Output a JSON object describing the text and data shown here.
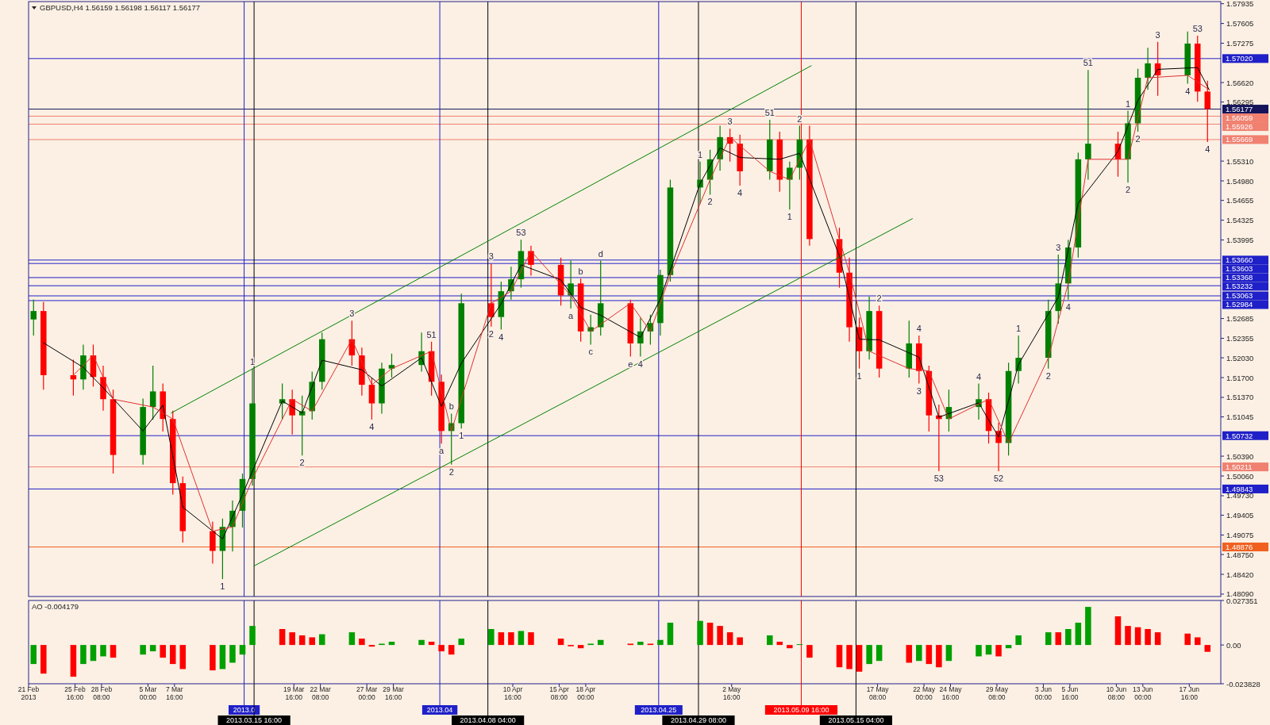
{
  "chart_data": [
    {
      "type": "candlestick",
      "title": "GBPUSD,H4  1.56159 1.56198 1.56117 1.56177",
      "x": [
        "2013-02-21T12:00",
        "2013-02-22T12:00",
        "2013-02-25T12:00",
        "2013-02-26T12:00",
        "2013-02-27T12:00",
        "2013-02-28T12:00",
        "2013-03-01T12:00",
        "2013-03-04T12:00",
        "2013-03-05T12:00",
        "2013-03-06T12:00",
        "2013-03-07T12:00",
        "2013-03-08T12:00",
        "2013-03-11T12:00",
        "2013-03-12T12:00",
        "2013-03-13T12:00",
        "2013-03-14T12:00",
        "2013-03-15T12:00",
        "2013-03-18T12:00",
        "2013-03-19T12:00",
        "2013-03-20T12:00",
        "2013-03-21T12:00",
        "2013-03-22T12:00",
        "2013-03-25T12:00",
        "2013-03-26T12:00",
        "2013-03-27T12:00",
        "2013-03-28T12:00",
        "2013-03-29T12:00",
        "2013-04-01T12:00",
        "2013-04-02T12:00",
        "2013-04-03T12:00",
        "2013-04-04T12:00",
        "2013-04-05T12:00",
        "2013-04-08T12:00",
        "2013-04-09T12:00",
        "2013-04-10T12:00",
        "2013-04-11T12:00",
        "2013-04-12T12:00",
        "2013-04-15T12:00",
        "2013-04-16T12:00",
        "2013-04-17T12:00",
        "2013-04-18T12:00",
        "2013-04-19T12:00",
        "2013-04-22T12:00",
        "2013-04-23T12:00",
        "2013-04-24T12:00",
        "2013-04-25T12:00",
        "2013-04-26T12:00",
        "2013-04-29T12:00",
        "2013-04-30T12:00",
        "2013-05-01T12:00",
        "2013-05-02T12:00",
        "2013-05-03T12:00",
        "2013-05-06T12:00",
        "2013-05-07T12:00",
        "2013-05-08T12:00",
        "2013-05-09T12:00",
        "2013-05-10T12:00",
        "2013-05-13T12:00",
        "2013-05-14T12:00",
        "2013-05-15T12:00",
        "2013-05-16T12:00",
        "2013-05-17T12:00",
        "2013-05-20T12:00",
        "2013-05-21T12:00",
        "2013-05-22T12:00",
        "2013-05-23T12:00",
        "2013-05-24T12:00",
        "2013-05-27T12:00",
        "2013-05-28T12:00",
        "2013-05-29T12:00",
        "2013-05-30T12:00",
        "2013-05-31T12:00",
        "2013-06-03T12:00",
        "2013-06-04T12:00",
        "2013-06-05T12:00",
        "2013-06-06T12:00",
        "2013-06-07T12:00",
        "2013-06-10T12:00",
        "2013-06-11T12:00",
        "2013-06-12T12:00",
        "2013-06-13T12:00",
        "2013-06-14T12:00",
        "2013-06-17T12:00",
        "2013-06-18T12:00",
        "2013-06-19T12:00"
      ],
      "ohlc": [
        [
          1.5267,
          1.53,
          1.524,
          1.5281
        ],
        [
          1.5281,
          1.5296,
          1.515,
          1.5174
        ],
        [
          1.5174,
          1.52,
          1.514,
          1.5167
        ],
        [
          1.5167,
          1.5225,
          1.515,
          1.5207
        ],
        [
          1.5207,
          1.5225,
          1.5155,
          1.5171
        ],
        [
          1.5171,
          1.519,
          1.5115,
          1.5134
        ],
        [
          1.5134,
          1.515,
          1.501,
          1.5041
        ],
        [
          1.5041,
          1.5135,
          1.5025,
          1.5121
        ],
        [
          1.5121,
          1.519,
          1.51,
          1.5147
        ],
        [
          1.5147,
          1.516,
          1.508,
          1.5101
        ],
        [
          1.5101,
          1.5115,
          1.4975,
          1.4994
        ],
        [
          1.4994,
          1.5005,
          1.4895,
          1.4914
        ],
        [
          1.4914,
          1.493,
          1.486,
          1.4881
        ],
        [
          1.4881,
          1.4935,
          1.4834,
          1.4921
        ],
        [
          1.4921,
          1.4965,
          1.488,
          1.4948
        ],
        [
          1.4948,
          1.501,
          1.492,
          1.5001
        ],
        [
          1.5001,
          1.5185,
          1.499,
          1.5127
        ],
        [
          1.5127,
          1.516,
          1.51,
          1.5134
        ],
        [
          1.5134,
          1.515,
          1.5075,
          1.5107
        ],
        [
          1.5107,
          1.514,
          1.504,
          1.5114
        ],
        [
          1.5114,
          1.518,
          1.51,
          1.5163
        ],
        [
          1.5163,
          1.5245,
          1.515,
          1.5234
        ],
        [
          1.5234,
          1.5265,
          1.519,
          1.5207
        ],
        [
          1.5207,
          1.522,
          1.514,
          1.5158
        ],
        [
          1.5158,
          1.517,
          1.51,
          1.5127
        ],
        [
          1.5127,
          1.5195,
          1.511,
          1.5185
        ],
        [
          1.5185,
          1.521,
          1.517,
          1.5191
        ],
        [
          1.5191,
          1.5245,
          1.518,
          1.5214
        ],
        [
          1.5214,
          1.523,
          1.514,
          1.5163
        ],
        [
          1.5163,
          1.5175,
          1.506,
          1.5081
        ],
        [
          1.5081,
          1.511,
          1.5025,
          1.5094
        ],
        [
          1.5094,
          1.531,
          1.5085,
          1.5294
        ],
        [
          1.5294,
          1.536,
          1.5255,
          1.5271
        ],
        [
          1.5271,
          1.533,
          1.525,
          1.5314
        ],
        [
          1.5314,
          1.5355,
          1.53,
          1.5334
        ],
        [
          1.5334,
          1.54,
          1.532,
          1.5381
        ],
        [
          1.5381,
          1.539,
          1.534,
          1.5358
        ],
        [
          1.5358,
          1.537,
          1.529,
          1.5307
        ],
        [
          1.5307,
          1.5365,
          1.5285,
          1.5327
        ],
        [
          1.5327,
          1.5335,
          1.523,
          1.5247
        ],
        [
          1.5247,
          1.5275,
          1.5225,
          1.5254
        ],
        [
          1.5254,
          1.5365,
          1.524,
          1.5294
        ],
        [
          1.5294,
          1.53,
          1.5205,
          1.5227
        ],
        [
          1.5227,
          1.527,
          1.5205,
          1.5247
        ],
        [
          1.5247,
          1.5275,
          1.5225,
          1.5261
        ],
        [
          1.5261,
          1.535,
          1.524,
          1.5341
        ],
        [
          1.5341,
          1.55,
          1.533,
          1.5487
        ],
        [
          1.5487,
          1.553,
          1.546,
          1.55
        ],
        [
          1.55,
          1.555,
          1.5475,
          1.5534
        ],
        [
          1.5534,
          1.559,
          1.5515,
          1.5571
        ],
        [
          1.5571,
          1.5585,
          1.553,
          1.556
        ],
        [
          1.556,
          1.5575,
          1.549,
          1.5514
        ],
        [
          1.5514,
          1.56,
          1.55,
          1.5567
        ],
        [
          1.5567,
          1.558,
          1.548,
          1.55
        ],
        [
          1.55,
          1.553,
          1.545,
          1.552
        ],
        [
          1.552,
          1.559,
          1.55,
          1.5567
        ],
        [
          1.5567,
          1.559,
          1.539,
          1.5401
        ],
        [
          1.5401,
          1.542,
          1.532,
          1.5345
        ],
        [
          1.5345,
          1.537,
          1.523,
          1.5254
        ],
        [
          1.5254,
          1.527,
          1.5185,
          1.5214
        ],
        [
          1.5214,
          1.5305,
          1.52,
          1.5281
        ],
        [
          1.5281,
          1.529,
          1.517,
          1.5185
        ],
        [
          1.5185,
          1.5265,
          1.517,
          1.5227
        ],
        [
          1.5227,
          1.524,
          1.516,
          1.5181
        ],
        [
          1.5181,
          1.519,
          1.508,
          1.5107
        ],
        [
          1.5107,
          1.5125,
          1.5014,
          1.5101
        ],
        [
          1.5101,
          1.515,
          1.508,
          1.5121
        ],
        [
          1.5121,
          1.516,
          1.51,
          1.5134
        ],
        [
          1.5134,
          1.5145,
          1.506,
          1.5081
        ],
        [
          1.5081,
          1.5095,
          1.5014,
          1.5061
        ],
        [
          1.5061,
          1.5195,
          1.504,
          1.5181
        ],
        [
          1.5181,
          1.524,
          1.516,
          1.5203
        ],
        [
          1.5203,
          1.53,
          1.5185,
          1.5281
        ],
        [
          1.5281,
          1.5375,
          1.526,
          1.5327
        ],
        [
          1.5327,
          1.54,
          1.53,
          1.5387
        ],
        [
          1.5387,
          1.5545,
          1.537,
          1.5534
        ],
        [
          1.5534,
          1.5683,
          1.55,
          1.556
        ],
        [
          1.556,
          1.558,
          1.5505,
          1.5534
        ],
        [
          1.5534,
          1.5615,
          1.5495,
          1.5594
        ],
        [
          1.5594,
          1.5685,
          1.558,
          1.567
        ],
        [
          1.567,
          1.572,
          1.565,
          1.5694
        ],
        [
          1.5694,
          1.573,
          1.564,
          1.5674
        ],
        [
          1.5674,
          1.5747,
          1.566,
          1.5727
        ],
        [
          1.5727,
          1.574,
          1.563,
          1.5647
        ],
        [
          1.5647,
          1.5665,
          1.5563,
          1.5618
        ]
      ],
      "colors": [
        "#008000",
        "#ff0000",
        "#ff0000",
        "#008000",
        "#ff0000",
        "#ff0000",
        "#ff0000",
        "#008000",
        "#008000",
        "#ff0000",
        "#ff0000",
        "#ff0000",
        "#ff0000",
        "#008000",
        "#008000",
        "#008000",
        "#008000",
        "#008000",
        "#ff0000",
        "#008000",
        "#008000",
        "#008000",
        "#ff0000",
        "#ff0000",
        "#ff0000",
        "#008000",
        "#008000",
        "#008000",
        "#ff0000",
        "#ff0000",
        "#008000",
        "#008000",
        "#ff0000",
        "#008000",
        "#008000",
        "#008000",
        "#ff0000",
        "#ff0000",
        "#008000",
        "#ff0000",
        "#008000",
        "#008000",
        "#ff0000",
        "#008000",
        "#008000",
        "#008000",
        "#008000",
        "#008000",
        "#008000",
        "#008000",
        "#ff0000",
        "#ff0000",
        "#008000",
        "#ff0000",
        "#008000",
        "#008000",
        "#ff0000",
        "#ff0000",
        "#ff0000",
        "#ff0000",
        "#008000",
        "#ff0000",
        "#008000",
        "#ff0000",
        "#ff0000",
        "#ff0000",
        "#008000",
        "#008000",
        "#ff0000",
        "#ff0000",
        "#008000",
        "#008000",
        "#008000",
        "#008000",
        "#008000",
        "#008000",
        "#008000",
        "#ff0000",
        "#008000",
        "#008000",
        "#008000",
        "#ff0000",
        "#008000",
        "#ff0000",
        "#ff0000"
      ],
      "series": [
        {
          "type": "line",
          "color": "#000000",
          "x": [
            "2013-02-22T12:00",
            "2013-02-26T12:00",
            "2013-02-28T12:00",
            "2013-03-04T12:00",
            "2013-03-06T12:00",
            "2013-03-08T12:00",
            "2013-03-12T12:00",
            "2013-03-14T12:00",
            "2013-03-18T12:00",
            "2013-03-20T12:00",
            "2013-03-22T12:00",
            "2013-03-26T12:00",
            "2013-03-28T12:00",
            "2013-04-01T12:00",
            "2013-04-03T12:00",
            "2013-04-05T12:00",
            "2013-04-09T12:00",
            "2013-04-11T12:00",
            "2013-04-15T12:00",
            "2013-04-17T12:00",
            "2013-04-19T12:00",
            "2013-04-23T12:00",
            "2013-04-25T12:00",
            "2013-04-29T12:00",
            "2013-05-01T12:00",
            "2013-05-03T12:00",
            "2013-05-07T12:00",
            "2013-05-09T12:00",
            "2013-05-13T12:00",
            "2013-05-15T12:00",
            "2013-05-17T12:00",
            "2013-05-21T12:00",
            "2013-05-23T12:00",
            "2013-05-27T12:00",
            "2013-05-29T12:00",
            "2013-05-31T12:00",
            "2013-06-04T12:00",
            "2013-06-06T12:00",
            "2013-06-10T12:00",
            "2013-06-12T12:00",
            "2013-06-14T12:00",
            "2013-06-18T12:00",
            "2013-06-19T16:00"
          ],
          "values": [
            1.5228,
            1.5187,
            1.5153,
            1.5081,
            1.5124,
            1.4954,
            1.4901,
            1.4975,
            1.5131,
            1.5111,
            1.5199,
            1.5183,
            1.5156,
            1.5203,
            1.5122,
            1.5194,
            1.5293,
            1.5358,
            1.5333,
            1.5287,
            1.5274,
            1.5237,
            1.5301,
            1.5494,
            1.5553,
            1.5537,
            1.5534,
            1.5544,
            1.5373,
            1.5234,
            1.5233,
            1.5204,
            1.5104,
            1.5128,
            1.5071,
            1.5192,
            1.5304,
            1.5461,
            1.5547,
            1.5632,
            1.5684,
            1.5687,
            1.565
          ]
        },
        {
          "type": "line",
          "color": "#e03030",
          "x": [
            "2013-02-25T12:00",
            "2013-02-27T12:00",
            "2013-03-01T12:00",
            "2013-03-05T12:00",
            "2013-03-07T12:00",
            "2013-03-11T12:00",
            "2013-03-13T12:00",
            "2013-03-15T12:00",
            "2013-03-19T12:00",
            "2013-03-21T12:00",
            "2013-03-25T12:00",
            "2013-03-27T12:00",
            "2013-03-29T12:00",
            "2013-04-02T12:00",
            "2013-04-04T12:00",
            "2013-04-08T12:00",
            "2013-04-10T12:00",
            "2013-04-12T12:00",
            "2013-04-16T12:00",
            "2013-04-18T12:00",
            "2013-04-22T12:00",
            "2013-04-24T12:00",
            "2013-04-26T12:00",
            "2013-04-30T12:00",
            "2013-05-02T12:00",
            "2013-05-06T12:00",
            "2013-05-08T12:00",
            "2013-05-10T12:00",
            "2013-05-14T12:00",
            "2013-05-16T12:00",
            "2013-05-20T12:00",
            "2013-05-22T12:00",
            "2013-05-24T12:00",
            "2013-05-28T12:00",
            "2013-05-30T12:00",
            "2013-06-03T12:00",
            "2013-06-05T12:00",
            "2013-06-07T12:00",
            "2013-06-11T12:00",
            "2013-06-13T12:00",
            "2013-06-17T12:00",
            "2013-06-19T16:00"
          ],
          "values": [
            1.5174,
            1.5207,
            1.5134,
            1.5121,
            1.5101,
            1.4914,
            1.4921,
            1.5001,
            1.5134,
            1.5114,
            1.5234,
            1.5158,
            1.5185,
            1.5214,
            1.5081,
            1.5294,
            1.5314,
            1.5381,
            1.5307,
            1.5247,
            1.5294,
            1.5247,
            1.5341,
            1.55,
            1.5571,
            1.5514,
            1.55,
            1.5567,
            1.5345,
            1.5214,
            1.5185,
            1.5181,
            1.5101,
            1.5134,
            1.5061,
            1.5203,
            1.5327,
            1.5534,
            1.5534,
            1.567,
            1.5674,
            1.565
          ]
        },
        {
          "type": "line",
          "color": "#008000",
          "x": [
            "2013-03-07T08:00",
            "2013-05-10T16:00"
          ],
          "values": [
            1.5111,
            1.569
          ]
        },
        {
          "type": "line",
          "color": "#008000",
          "x": [
            "2013-03-15T16:00",
            "2013-05-20T20:00"
          ],
          "values": [
            1.4856,
            1.5435
          ]
        }
      ],
      "xlim": [
        "2013-02-21T00:00",
        "2013-06-20T20:00"
      ],
      "ylim": [
        1.4805,
        1.5797
      ],
      "yticks": [
        1.57935,
        1.57605,
        1.57275,
        {
          "value": 1.5662,
          "label": "1.56620"
        },
        1.56295,
        {
          "value": 1.5531,
          "label": "1.55310"
        },
        {
          "value": 1.5498,
          "label": "1.54980"
        },
        1.54655,
        1.54325,
        1.53995,
        1.52685,
        1.52355,
        {
          "value": 1.5203,
          "label": "1.52030"
        },
        {
          "value": 1.517,
          "label": "1.51700"
        },
        {
          "value": 1.5137,
          "label": "1.51370"
        },
        1.51045,
        {
          "value": 1.5039,
          "label": "1.50390"
        },
        {
          "value": 1.5006,
          "label": "1.50060"
        },
        {
          "value": 1.4973,
          "label": "1.49730"
        },
        1.49405,
        1.49075,
        {
          "value": 1.4875,
          "label": "1.48750"
        },
        {
          "value": 1.4842,
          "label": "1.48420"
        },
        {
          "value": 1.4809,
          "label": "1.48090"
        }
      ],
      "tick_labels": "y",
      "ref_lines": [
        {
          "axis": "y",
          "value": 1.5702,
          "label": "1.57020",
          "color": "#2020c8"
        },
        {
          "axis": "y",
          "value": 1.56177,
          "label": "1.56177",
          "color": "#14145a"
        },
        {
          "axis": "y",
          "value": 1.56059,
          "label": "1.56059",
          "color": "#f08070"
        },
        {
          "axis": "y",
          "value": 1.55926,
          "label": "1.55926",
          "color": "#f08070"
        },
        {
          "axis": "y",
          "value": 1.55669,
          "label": "1.55669",
          "color": "#f08070"
        },
        {
          "axis": "y",
          "value": 1.5366,
          "label": "1.53660",
          "color": "#2020c8"
        },
        {
          "axis": "y",
          "value": 1.53603,
          "label": "1.53603",
          "color": "#2020c8"
        },
        {
          "axis": "y",
          "value": 1.53368,
          "label": "1.53368",
          "color": "#2020c8"
        },
        {
          "axis": "y",
          "value": 1.53232,
          "label": "1.53232",
          "color": "#2020c8"
        },
        {
          "axis": "y",
          "value": 1.53063,
          "label": "1.53063",
          "color": "#2020c8"
        },
        {
          "axis": "y",
          "value": 1.52984,
          "label": "1.52984",
          "color": "#2020c8"
        },
        {
          "axis": "y",
          "value": 1.50732,
          "label": "1.50732",
          "color": "#2020c8"
        },
        {
          "axis": "y",
          "value": 1.50211,
          "label": "1.50211",
          "color": "#f08070"
        },
        {
          "axis": "y",
          "value": 1.49843,
          "label": "1.49843",
          "color": "#2020c8"
        },
        {
          "axis": "y",
          "value": 1.48876,
          "label": "1.48876",
          "color": "#f06020"
        },
        {
          "axis": "x",
          "value": "2013-03-14T16:00",
          "color": "#2020c8"
        },
        {
          "axis": "x",
          "value": "2013-03-15T16:00",
          "color": "#000000"
        },
        {
          "axis": "x",
          "value": "2013-04-03T08:00",
          "color": "#2020c8"
        },
        {
          "axis": "x",
          "value": "2013-04-08T04:00",
          "color": "#000000"
        },
        {
          "axis": "x",
          "value": "2013-04-25T08:00",
          "color": "#2020c8"
        },
        {
          "axis": "x",
          "value": "2013-04-29T08:00",
          "color": "#000000"
        },
        {
          "axis": "x",
          "value": "2013-05-09T16:00",
          "color": "#ff0000"
        },
        {
          "axis": "x",
          "value": "2013-05-15T04:00",
          "color": "#000000"
        }
      ],
      "annotations": [
        {
          "text": "1",
          "x": "2013-03-12T12:00",
          "y": 1.4834
        },
        {
          "text": "1",
          "x": "2013-03-15T12:00",
          "y": 1.5185
        },
        {
          "text": "2",
          "x": "2013-03-20T12:00",
          "y": 1.504
        },
        {
          "text": "3",
          "x": "2013-03-25T12:00",
          "y": 1.5265
        },
        {
          "text": "4",
          "x": "2013-03-27T12:00",
          "y": 1.51
        },
        {
          "text": "51",
          "x": "2013-04-02T12:00",
          "y": 1.523
        },
        {
          "text": "a",
          "x": "2013-04-03T12:00",
          "y": 1.506
        },
        {
          "text": "b",
          "x": "2013-04-04T12:00",
          "y": 1.511
        },
        {
          "text": "2",
          "x": "2013-04-04T12:00",
          "y": 1.5025
        },
        {
          "text": "1",
          "x": "2013-04-05T12:00",
          "y": 1.5085
        },
        {
          "text": "2",
          "x": "2013-04-08T12:00",
          "y": 1.5255
        },
        {
          "text": "3",
          "x": "2013-04-08T12:00",
          "y": 1.536
        },
        {
          "text": "4",
          "x": "2013-04-09T12:00",
          "y": 1.525
        },
        {
          "text": "53",
          "x": "2013-04-11T12:00",
          "y": 1.54
        },
        {
          "text": "a",
          "x": "2013-04-16T12:00",
          "y": 1.5285
        },
        {
          "text": "b",
          "x": "2013-04-17T12:00",
          "y": 1.5335
        },
        {
          "text": "c",
          "x": "2013-04-18T12:00",
          "y": 1.5225
        },
        {
          "text": "d",
          "x": "2013-04-19T12:00",
          "y": 1.5365
        },
        {
          "text": "e",
          "x": "2013-04-22T12:00",
          "y": 1.5205
        },
        {
          "text": "4",
          "x": "2013-04-23T12:00",
          "y": 1.5205
        },
        {
          "text": "1",
          "x": "2013-04-29T12:00",
          "y": 1.553
        },
        {
          "text": "2",
          "x": "2013-04-30T12:00",
          "y": 1.5475
        },
        {
          "text": "3",
          "x": "2013-05-02T12:00",
          "y": 1.5585
        },
        {
          "text": "4",
          "x": "2013-05-03T12:00",
          "y": 1.549
        },
        {
          "text": "51",
          "x": "2013-05-06T12:00",
          "y": 1.56
        },
        {
          "text": "1",
          "x": "2013-05-08T12:00",
          "y": 1.545
        },
        {
          "text": "2",
          "x": "2013-05-09T12:00",
          "y": 1.559
        },
        {
          "text": "1",
          "x": "2013-05-15T12:00",
          "y": 1.5185
        },
        {
          "text": "2",
          "x": "2013-05-17T12:00",
          "y": 1.529
        },
        {
          "text": "4",
          "x": "2013-05-21T12:00",
          "y": 1.524
        },
        {
          "text": "3",
          "x": "2013-05-21T12:00",
          "y": 1.516
        },
        {
          "text": "53",
          "x": "2013-05-23T12:00",
          "y": 1.5014
        },
        {
          "text": "4",
          "x": "2013-05-27T12:00",
          "y": 1.516
        },
        {
          "text": "52",
          "x": "2013-05-29T12:00",
          "y": 1.5014
        },
        {
          "text": "1",
          "x": "2013-05-31T12:00",
          "y": 1.524
        },
        {
          "text": "2",
          "x": "2013-06-03T12:00",
          "y": 1.5185
        },
        {
          "text": "3",
          "x": "2013-06-04T12:00",
          "y": 1.5375
        },
        {
          "text": "4",
          "x": "2013-06-05T12:00",
          "y": 1.53
        },
        {
          "text": "51",
          "x": "2013-06-07T12:00",
          "y": 1.5683
        },
        {
          "text": "2",
          "x": "2013-06-11T12:00",
          "y": 1.5495
        },
        {
          "text": "1",
          "x": "2013-06-11T12:00",
          "y": 1.5615
        },
        {
          "text": "2",
          "x": "2013-06-12T12:00",
          "y": 1.558
        },
        {
          "text": "3",
          "x": "2013-06-14T12:00",
          "y": 1.573
        },
        {
          "text": "4",
          "x": "2013-06-17T12:00",
          "y": 1.566
        },
        {
          "text": "53",
          "x": "2013-06-18T12:00",
          "y": 1.574
        },
        {
          "text": "4",
          "x": "2013-06-19T12:00",
          "y": 1.5563
        }
      ]
    },
    {
      "type": "bar",
      "title": "AO -0.004179",
      "x": [
        "2013-02-21T12:00",
        "2013-02-22T12:00",
        "2013-02-25T12:00",
        "2013-02-26T12:00",
        "2013-02-27T12:00",
        "2013-02-28T12:00",
        "2013-03-01T12:00",
        "2013-03-04T12:00",
        "2013-03-05T12:00",
        "2013-03-06T12:00",
        "2013-03-07T12:00",
        "2013-03-08T12:00",
        "2013-03-11T12:00",
        "2013-03-12T12:00",
        "2013-03-13T12:00",
        "2013-03-14T12:00",
        "2013-03-15T12:00",
        "2013-03-18T12:00",
        "2013-03-19T12:00",
        "2013-03-20T12:00",
        "2013-03-21T12:00",
        "2013-03-22T12:00",
        "2013-03-25T12:00",
        "2013-03-26T12:00",
        "2013-03-27T12:00",
        "2013-03-28T12:00",
        "2013-03-29T12:00",
        "2013-04-01T12:00",
        "2013-04-02T12:00",
        "2013-04-03T12:00",
        "2013-04-04T12:00",
        "2013-04-05T12:00",
        "2013-04-08T12:00",
        "2013-04-09T12:00",
        "2013-04-10T12:00",
        "2013-04-11T12:00",
        "2013-04-12T12:00",
        "2013-04-15T12:00",
        "2013-04-16T12:00",
        "2013-04-17T12:00",
        "2013-04-18T12:00",
        "2013-04-19T12:00",
        "2013-04-22T12:00",
        "2013-04-23T12:00",
        "2013-04-24T12:00",
        "2013-04-25T12:00",
        "2013-04-26T12:00",
        "2013-04-29T12:00",
        "2013-04-30T12:00",
        "2013-05-01T12:00",
        "2013-05-02T12:00",
        "2013-05-03T12:00",
        "2013-05-06T12:00",
        "2013-05-07T12:00",
        "2013-05-08T12:00",
        "2013-05-09T12:00",
        "2013-05-10T12:00",
        "2013-05-13T12:00",
        "2013-05-14T12:00",
        "2013-05-15T12:00",
        "2013-05-16T12:00",
        "2013-05-17T12:00",
        "2013-05-20T12:00",
        "2013-05-21T12:00",
        "2013-05-22T12:00",
        "2013-05-23T12:00",
        "2013-05-24T12:00",
        "2013-05-27T12:00",
        "2013-05-28T12:00",
        "2013-05-29T12:00",
        "2013-05-30T12:00",
        "2013-05-31T12:00",
        "2013-06-03T12:00",
        "2013-06-04T12:00",
        "2013-06-05T12:00",
        "2013-06-06T12:00",
        "2013-06-07T12:00",
        "2013-06-10T12:00",
        "2013-06-11T12:00",
        "2013-06-12T12:00",
        "2013-06-13T12:00",
        "2013-06-14T12:00",
        "2013-06-17T12:00",
        "2013-06-18T12:00",
        "2013-06-19T12:00"
      ],
      "values": [
        -0.0117,
        -0.0176,
        -0.0195,
        -0.0117,
        -0.0098,
        -0.007,
        -0.0078,
        -0.0059,
        -0.0039,
        -0.0078,
        -0.0117,
        -0.0148,
        -0.0156,
        -0.0148,
        -0.0109,
        -0.0059,
        0.0117,
        0.0098,
        0.0078,
        0.0059,
        0.0047,
        0.0066,
        0.0078,
        0.0039,
        -0.001,
        0.0008,
        0.002,
        0.0031,
        0.002,
        -0.0039,
        -0.0059,
        0.0039,
        0.0098,
        0.0078,
        0.0078,
        0.0086,
        0.0078,
        0.0039,
        -0.0008,
        -0.002,
        0.0008,
        0.0031,
        0.0008,
        0.002,
        0.0008,
        0.0031,
        0.0137,
        0.0148,
        0.0137,
        0.0117,
        0.0078,
        0.0047,
        0.0059,
        0.002,
        -0.002,
        0.0005,
        -0.0078,
        -0.0137,
        -0.0148,
        -0.0164,
        -0.0117,
        -0.0098,
        -0.0109,
        -0.0098,
        -0.0117,
        -0.0137,
        -0.0098,
        -0.007,
        -0.0059,
        -0.007,
        -0.002,
        0.0059,
        0.0078,
        0.0078,
        0.0098,
        0.0137,
        0.0234,
        0.0176,
        0.0117,
        0.0109,
        0.0098,
        0.0078,
        0.007,
        0.0047,
        -0.0042
      ],
      "colors": [
        "#00a000",
        "#ff0000",
        "#ff0000",
        "#00a000",
        "#00a000",
        "#00a000",
        "#ff0000",
        "#00a000",
        "#00a000",
        "#ff0000",
        "#ff0000",
        "#ff0000",
        "#ff0000",
        "#00a000",
        "#00a000",
        "#00a000",
        "#00a000",
        "#ff0000",
        "#ff0000",
        "#ff0000",
        "#ff0000",
        "#00a000",
        "#00a000",
        "#ff0000",
        "#ff0000",
        "#00a000",
        "#00a000",
        "#00a000",
        "#ff0000",
        "#ff0000",
        "#ff0000",
        "#00a000",
        "#00a000",
        "#ff0000",
        "#ff0000",
        "#00a000",
        "#ff0000",
        "#ff0000",
        "#ff0000",
        "#ff0000",
        "#00a000",
        "#00a000",
        "#ff0000",
        "#00a000",
        "#ff0000",
        "#00a000",
        "#00a000",
        "#00a000",
        "#ff0000",
        "#ff0000",
        "#ff0000",
        "#ff0000",
        "#00a000",
        "#ff0000",
        "#ff0000",
        "#00a000",
        "#ff0000",
        "#ff0000",
        "#ff0000",
        "#ff0000",
        "#00a000",
        "#00a000",
        "#ff0000",
        "#00a000",
        "#ff0000",
        "#ff0000",
        "#00a000",
        "#00a000",
        "#00a000",
        "#ff0000",
        "#00a000",
        "#00a000",
        "#00a000",
        "#ff0000",
        "#00a000",
        "#00a000",
        "#00a000",
        "#ff0000",
        "#ff0000",
        "#ff0000",
        "#ff0000",
        "#ff0000",
        "#ff0000",
        "#ff0000",
        "#ff0000"
      ],
      "xlim": [
        "2013-02-21T00:00",
        "2013-06-20T20:00"
      ],
      "xticks": [
        {
          "value": "2013-02-21T00:00",
          "label": "21 Feb 2013"
        },
        {
          "value": "2013-02-25T16:00",
          "label": "25 Feb 16:00"
        },
        {
          "value": "2013-02-28T08:00",
          "label": "28 Feb 08:00"
        },
        {
          "value": "2013-03-05T00:00",
          "label": "5 Mar 00:00"
        },
        {
          "value": "2013-03-07T16:00",
          "label": "7 Mar 16:00"
        },
        {
          "value": "2013-03-19T16:00",
          "label": "19 Mar 16:00"
        },
        {
          "value": "2013-03-22T08:00",
          "label": "22 Mar 08:00"
        },
        {
          "value": "2013-03-27T00:00",
          "label": "27 Mar 00:00"
        },
        {
          "value": "2013-03-29T16:00",
          "label": "29 Mar 16:00"
        },
        {
          "value": "2013-04-10T16:00",
          "label": "10 Apr 16:00"
        },
        {
          "value": "2013-04-15T08:00",
          "label": "15 Apr 08:00"
        },
        {
          "value": "2013-04-18T00:00",
          "label": "18 Apr 00:00"
        },
        {
          "value": "2013-05-02T16:00",
          "label": "2 May 16:00"
        },
        {
          "value": "2013-05-17T08:00",
          "label": "17 May 08:00"
        },
        {
          "value": "2013-05-22T00:00",
          "label": "22 May 00:00"
        },
        {
          "value": "2013-05-24T16:00",
          "label": "24 May 16:00"
        },
        {
          "value": "2013-05-29T08:00",
          "label": "29 May 08:00"
        },
        {
          "value": "2013-06-03T00:00",
          "label": "3 Jun 00:00"
        },
        {
          "value": "2013-06-05T16:00",
          "label": "5 Jun 16:00"
        },
        {
          "value": "2013-06-10T08:00",
          "label": "10 Jun 08:00"
        },
        {
          "value": "2013-06-13T00:00",
          "label": "13 Jun 00:00"
        },
        {
          "value": "2013-06-17T16:00",
          "label": "17 Jun 16:00"
        }
      ],
      "ylim": [
        -0.023828,
        0.027351
      ],
      "yticks": [
        0.027351,
        {
          "value": 0,
          "label": "0.00"
        },
        -0.023828
      ],
      "ref_lines": [
        {
          "axis": "x",
          "value": "2013-03-14T16:00",
          "label": "2013.0",
          "color": "#2020c8"
        },
        {
          "axis": "x",
          "value": "2013-03-15T16:00",
          "label": "2013.03.15 16:00",
          "color": "#000000"
        },
        {
          "axis": "x",
          "value": "2013-04-03T08:00",
          "label": "2013.04",
          "color": "#2020c8"
        },
        {
          "axis": "x",
          "value": "2013-04-08T04:00",
          "label": "2013.04.08 04:00",
          "color": "#000000"
        },
        {
          "axis": "x",
          "value": "2013-04-25T08:00",
          "label": "2013.04.25",
          "color": "#2020c8"
        },
        {
          "axis": "x",
          "value": "2013-04-29T08:00",
          "label": "2013.04.29 08:00",
          "color": "#000000"
        },
        {
          "axis": "x",
          "value": "2013-05-09T16:00",
          "label": "2013.05.09 16:00",
          "color": "#ff0000"
        },
        {
          "axis": "x",
          "value": "2013-05-15T04:00",
          "label": "2013.05.15 04:00",
          "color": "#000000"
        }
      ]
    }
  ]
}
